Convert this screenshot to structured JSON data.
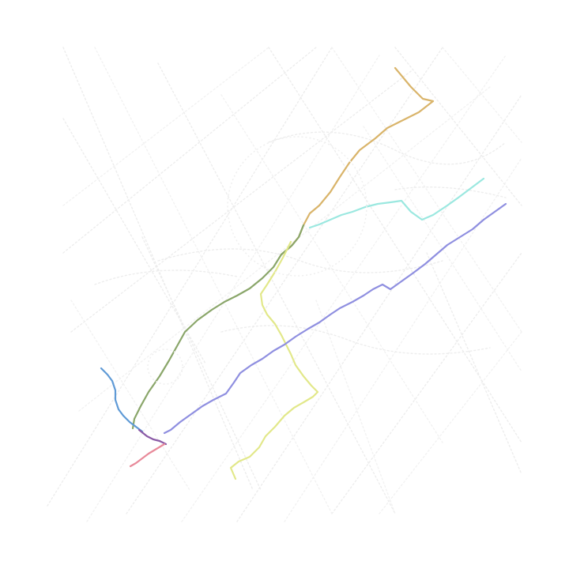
{
  "map": {
    "background_color": "#ffffff",
    "street_color": "#ededed",
    "street_color_light": "#f2f2f2",
    "labels": []
  },
  "routes": [
    {
      "name": "",
      "color": "#d9b46a"
    },
    {
      "name": "",
      "color": "#8aa66a"
    },
    {
      "name": "",
      "color": "#e2e88a"
    },
    {
      "name": "",
      "color": "#8f8fe0"
    },
    {
      "name": "",
      "color": "#9be8e0"
    },
    {
      "name": "",
      "color": "#5f9ad6"
    },
    {
      "name": "",
      "color": "#8a5aa6"
    },
    {
      "name": "",
      "color": "#e88a9a"
    }
  ]
}
